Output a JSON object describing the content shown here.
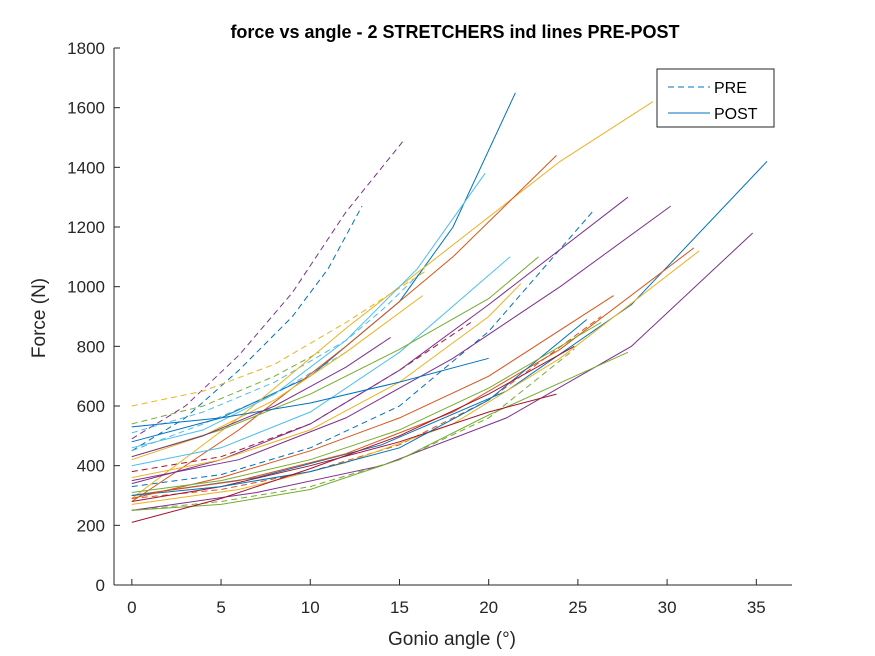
{
  "chart_data": {
    "type": "line",
    "title": "force vs angle - 2 STRETCHERS ind lines PRE-POST",
    "xlabel": "Gonio angle (°)",
    "ylabel": "Force (N)",
    "xlim": [
      -1,
      37
    ],
    "ylim": [
      0,
      1800
    ],
    "xticks": [
      0,
      5,
      10,
      15,
      20,
      25,
      30,
      35
    ],
    "yticks": [
      0,
      200,
      400,
      600,
      800,
      1000,
      1200,
      1400,
      1600,
      1800
    ],
    "grid": false,
    "legend": {
      "position": "top-right",
      "entries": [
        {
          "label": "PRE",
          "style": "dashed",
          "color": "#0072BD"
        },
        {
          "label": "POST",
          "style": "solid",
          "color": "#0072BD"
        }
      ]
    },
    "series": [
      {
        "style": "dashed",
        "color": "#7E2F8E",
        "x": [
          0,
          3,
          6,
          9,
          12,
          15.3
        ],
        "y": [
          490,
          600,
          770,
          980,
          1250,
          1495
        ]
      },
      {
        "style": "dashed",
        "color": "#0072BD",
        "x": [
          0,
          3,
          6,
          9,
          11,
          12.9
        ],
        "y": [
          450,
          560,
          720,
          900,
          1060,
          1270
        ]
      },
      {
        "style": "dashed",
        "color": "#4DBEEE",
        "x": [
          0,
          4,
          8,
          12,
          14,
          16.4
        ],
        "y": [
          510,
          580,
          680,
          820,
          920,
          1060
        ]
      },
      {
        "style": "dashed",
        "color": "#EDB120",
        "x": [
          0,
          4,
          8,
          12,
          16.4
        ],
        "y": [
          600,
          650,
          740,
          880,
          1050
        ]
      },
      {
        "style": "dashed",
        "color": "#77AC30",
        "x": [
          0,
          4,
          8,
          10.5
        ],
        "y": [
          540,
          600,
          700,
          780
        ]
      },
      {
        "style": "dashed",
        "color": "#0072BD",
        "x": [
          0,
          5,
          10,
          15,
          20,
          25.8
        ],
        "y": [
          330,
          370,
          460,
          600,
          850,
          1250
        ]
      },
      {
        "style": "dashed",
        "color": "#A2142F",
        "x": [
          0,
          5,
          10,
          15,
          19
        ],
        "y": [
          380,
          430,
          540,
          720,
          880
        ]
      },
      {
        "style": "dashed",
        "color": "#D95319",
        "x": [
          0,
          5,
          10,
          15,
          20,
          26.3
        ],
        "y": [
          290,
          320,
          380,
          470,
          620,
          900
        ]
      },
      {
        "style": "dashed",
        "color": "#77AC30",
        "x": [
          0,
          5,
          10,
          15,
          20,
          24.8
        ],
        "y": [
          250,
          280,
          330,
          420,
          560,
          790
        ]
      },
      {
        "style": "dashed",
        "color": "#4DBEEE",
        "x": [
          0,
          4,
          8,
          12
        ],
        "y": [
          450,
          540,
          640,
          780
        ]
      },
      {
        "style": "solid",
        "color": "#0072BD",
        "x": [
          0,
          5,
          10,
          15,
          18,
          21.5
        ],
        "y": [
          480,
          560,
          700,
          950,
          1200,
          1650
        ]
      },
      {
        "style": "solid",
        "color": "#EDB120",
        "x": [
          0,
          6,
          12,
          18,
          24,
          29.2
        ],
        "y": [
          290,
          560,
          860,
          1140,
          1420,
          1620
        ]
      },
      {
        "style": "solid",
        "color": "#D95319",
        "x": [
          0,
          6,
          12,
          18,
          23.8
        ],
        "y": [
          280,
          520,
          800,
          1100,
          1440
        ]
      },
      {
        "style": "solid",
        "color": "#4DBEEE",
        "x": [
          0,
          4,
          8,
          12,
          16,
          19.8
        ],
        "y": [
          460,
          520,
          640,
          820,
          1060,
          1380
        ]
      },
      {
        "style": "solid",
        "color": "#0072BD",
        "x": [
          0,
          7,
          14,
          21,
          28,
          35.6
        ],
        "y": [
          300,
          360,
          470,
          650,
          940,
          1420
        ]
      },
      {
        "style": "solid",
        "color": "#7E2F8E",
        "x": [
          0,
          6,
          12,
          18,
          24,
          30.2
        ],
        "y": [
          350,
          420,
          560,
          760,
          1000,
          1270
        ]
      },
      {
        "style": "solid",
        "color": "#7E2F8E",
        "x": [
          0,
          7,
          14,
          21,
          28,
          34.8
        ],
        "y": [
          250,
          310,
          400,
          560,
          800,
          1180
        ]
      },
      {
        "style": "solid",
        "color": "#7E2F8E",
        "x": [
          0,
          5,
          10,
          15,
          20,
          27.8
        ],
        "y": [
          340,
          420,
          540,
          720,
          940,
          1300
        ]
      },
      {
        "style": "solid",
        "color": "#D95319",
        "x": [
          0,
          6,
          12,
          18,
          24,
          31.5
        ],
        "y": [
          300,
          350,
          440,
          580,
          790,
          1130
        ]
      },
      {
        "style": "solid",
        "color": "#EDB120",
        "x": [
          0,
          6,
          12,
          18,
          24,
          31.8
        ],
        "y": [
          270,
          320,
          410,
          540,
          760,
          1120
        ]
      },
      {
        "style": "solid",
        "color": "#77AC30",
        "x": [
          0,
          5,
          10,
          15,
          20,
          27.8
        ],
        "y": [
          250,
          270,
          320,
          420,
          570,
          780
        ]
      },
      {
        "style": "solid",
        "color": "#A2142F",
        "x": [
          0,
          5,
          10,
          15,
          20,
          23.8
        ],
        "y": [
          280,
          330,
          400,
          480,
          580,
          640
        ]
      },
      {
        "style": "solid",
        "color": "#0072BD",
        "x": [
          0,
          5,
          10,
          15,
          20,
          25.5
        ],
        "y": [
          300,
          330,
          380,
          460,
          620,
          890
        ]
      },
      {
        "style": "solid",
        "color": "#EDB120",
        "x": [
          0,
          4,
          8,
          12,
          16.3
        ],
        "y": [
          420,
          500,
          620,
          780,
          970
        ]
      },
      {
        "style": "solid",
        "color": "#EDB120",
        "x": [
          0,
          5,
          10,
          15,
          20,
          21.8
        ],
        "y": [
          360,
          420,
          520,
          680,
          900,
          1010
        ]
      },
      {
        "style": "solid",
        "color": "#4DBEEE",
        "x": [
          0,
          5,
          10,
          15,
          21.2
        ],
        "y": [
          400,
          460,
          580,
          780,
          1100
        ]
      },
      {
        "style": "solid",
        "color": "#77AC30",
        "x": [
          0,
          5,
          10,
          15,
          20,
          22.8
        ],
        "y": [
          430,
          520,
          640,
          790,
          960,
          1100
        ]
      },
      {
        "style": "solid",
        "color": "#D95319",
        "x": [
          0,
          5,
          10,
          15,
          20,
          27
        ],
        "y": [
          290,
          360,
          450,
          560,
          700,
          970
        ]
      },
      {
        "style": "solid",
        "color": "#A2142F",
        "x": [
          0,
          5,
          10,
          15,
          20,
          24.8
        ],
        "y": [
          210,
          290,
          390,
          500,
          640,
          800
        ]
      },
      {
        "style": "solid",
        "color": "#0072BD",
        "x": [
          0,
          5,
          10,
          15,
          20
        ],
        "y": [
          530,
          560,
          610,
          680,
          760
        ]
      },
      {
        "style": "solid",
        "color": "#7E2F8E",
        "x": [
          0,
          4,
          8,
          12,
          14.5
        ],
        "y": [
          430,
          500,
          600,
          730,
          830
        ]
      },
      {
        "style": "solid",
        "color": "#77AC30",
        "x": [
          0,
          5,
          10,
          15,
          20,
          26.3
        ],
        "y": [
          310,
          350,
          420,
          520,
          660,
          880
        ]
      }
    ]
  }
}
